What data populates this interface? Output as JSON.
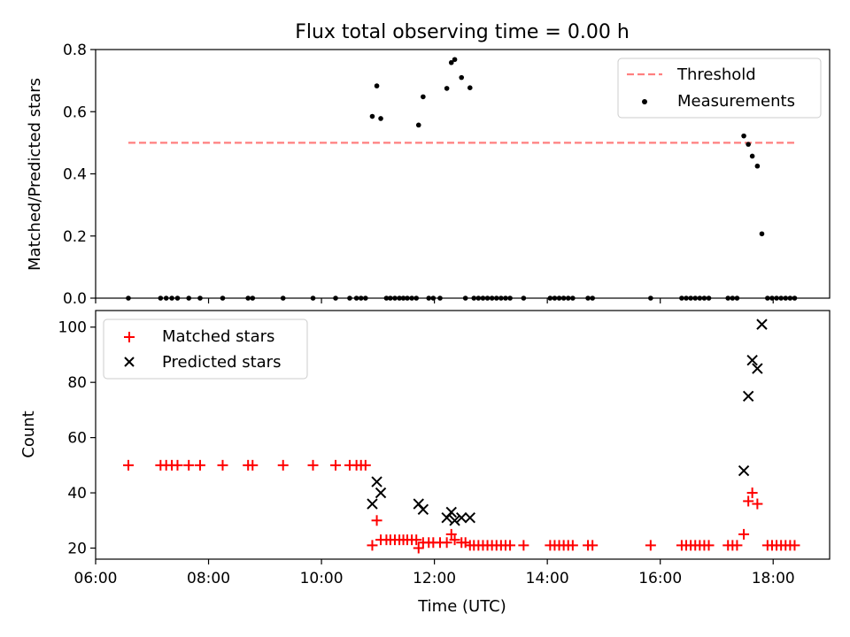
{
  "title": "Flux total observing time = 0.00 h",
  "chart_data": [
    {
      "type": "scatter",
      "xlabel": "",
      "ylabel": "Matched/Predicted stars",
      "xlim": [
        6.0,
        19.0
      ],
      "ylim": [
        0.0,
        0.8
      ],
      "y_ticks": [
        0.0,
        0.2,
        0.4,
        0.6,
        0.8
      ],
      "y_tick_labels": [
        "0.0",
        "0.2",
        "0.4",
        "0.6",
        "0.8"
      ],
      "x_ticks": [
        6,
        8,
        10,
        12,
        14,
        16,
        18
      ],
      "legend": {
        "placement": "upper-right",
        "entries": [
          "Threshold",
          "Measurements"
        ]
      },
      "threshold": {
        "name": "Threshold",
        "value": 0.5,
        "x_start": 6.58,
        "x_end": 18.42,
        "color": "#ff7f7f",
        "style": "dashed"
      },
      "series": [
        {
          "name": "Measurements",
          "marker": "dot",
          "color": "#000000",
          "points": [
            [
              6.58,
              0.0
            ],
            [
              7.15,
              0.0
            ],
            [
              7.25,
              0.0
            ],
            [
              7.35,
              0.0
            ],
            [
              7.45,
              0.0
            ],
            [
              7.65,
              0.0
            ],
            [
              7.85,
              0.0
            ],
            [
              8.25,
              0.0
            ],
            [
              8.7,
              0.0
            ],
            [
              8.78,
              0.0
            ],
            [
              9.32,
              0.0
            ],
            [
              9.85,
              0.0
            ],
            [
              10.25,
              0.0
            ],
            [
              10.5,
              0.0
            ],
            [
              10.62,
              0.0
            ],
            [
              10.7,
              0.0
            ],
            [
              10.78,
              0.0
            ],
            [
              10.9,
              0.585
            ],
            [
              10.98,
              0.683
            ],
            [
              11.05,
              0.578
            ],
            [
              11.15,
              0.0
            ],
            [
              11.22,
              0.0
            ],
            [
              11.3,
              0.0
            ],
            [
              11.38,
              0.0
            ],
            [
              11.45,
              0.0
            ],
            [
              11.52,
              0.0
            ],
            [
              11.6,
              0.0
            ],
            [
              11.68,
              0.0
            ],
            [
              11.72,
              0.557
            ],
            [
              11.8,
              0.648
            ],
            [
              11.9,
              0.0
            ],
            [
              11.98,
              0.0
            ],
            [
              12.1,
              0.0
            ],
            [
              12.22,
              0.675
            ],
            [
              12.3,
              0.758
            ],
            [
              12.36,
              0.768
            ],
            [
              12.48,
              0.71
            ],
            [
              12.55,
              0.0
            ],
            [
              12.63,
              0.677
            ],
            [
              12.7,
              0.0
            ],
            [
              12.78,
              0.0
            ],
            [
              12.86,
              0.0
            ],
            [
              12.94,
              0.0
            ],
            [
              13.02,
              0.0
            ],
            [
              13.1,
              0.0
            ],
            [
              13.18,
              0.0
            ],
            [
              13.26,
              0.0
            ],
            [
              13.34,
              0.0
            ],
            [
              13.58,
              0.0
            ],
            [
              14.05,
              0.0
            ],
            [
              14.13,
              0.0
            ],
            [
              14.21,
              0.0
            ],
            [
              14.29,
              0.0
            ],
            [
              14.37,
              0.0
            ],
            [
              14.45,
              0.0
            ],
            [
              14.72,
              0.0
            ],
            [
              14.8,
              0.0
            ],
            [
              15.83,
              0.0
            ],
            [
              16.38,
              0.0
            ],
            [
              16.46,
              0.0
            ],
            [
              16.54,
              0.0
            ],
            [
              16.62,
              0.0
            ],
            [
              16.7,
              0.0
            ],
            [
              16.78,
              0.0
            ],
            [
              16.86,
              0.0
            ],
            [
              17.2,
              0.0
            ],
            [
              17.28,
              0.0
            ],
            [
              17.36,
              0.0
            ],
            [
              17.48,
              0.522
            ],
            [
              17.56,
              0.495
            ],
            [
              17.63,
              0.457
            ],
            [
              17.72,
              0.425
            ],
            [
              17.8,
              0.207
            ],
            [
              17.9,
              0.0
            ],
            [
              17.98,
              0.0
            ],
            [
              18.06,
              0.0
            ],
            [
              18.14,
              0.0
            ],
            [
              18.22,
              0.0
            ],
            [
              18.3,
              0.0
            ],
            [
              18.38,
              0.0
            ]
          ]
        }
      ]
    },
    {
      "type": "scatter",
      "xlabel": "Time (UTC)",
      "ylabel": "Count",
      "xlim": [
        6.0,
        19.0
      ],
      "ylim": [
        16.0,
        106.0
      ],
      "y_ticks": [
        20,
        40,
        60,
        80,
        100
      ],
      "y_tick_labels": [
        "20",
        "40",
        "60",
        "80",
        "100"
      ],
      "x_ticks": [
        6,
        8,
        10,
        12,
        14,
        16,
        18
      ],
      "x_tick_labels": [
        "06:00",
        "08:00",
        "10:00",
        "12:00",
        "14:00",
        "16:00",
        "18:00"
      ],
      "legend": {
        "placement": "upper-left",
        "entries": [
          "Matched stars",
          "Predicted stars"
        ]
      },
      "series": [
        {
          "name": "Matched stars",
          "marker": "plus",
          "color": "#ff0000",
          "points": [
            [
              6.58,
              50
            ],
            [
              7.15,
              50
            ],
            [
              7.25,
              50
            ],
            [
              7.35,
              50
            ],
            [
              7.45,
              50
            ],
            [
              7.65,
              50
            ],
            [
              7.85,
              50
            ],
            [
              8.25,
              50
            ],
            [
              8.7,
              50
            ],
            [
              8.78,
              50
            ],
            [
              9.32,
              50
            ],
            [
              9.85,
              50
            ],
            [
              10.25,
              50
            ],
            [
              10.5,
              50
            ],
            [
              10.62,
              50
            ],
            [
              10.7,
              50
            ],
            [
              10.78,
              50
            ],
            [
              10.9,
              21
            ],
            [
              10.98,
              30
            ],
            [
              11.05,
              23
            ],
            [
              11.15,
              23
            ],
            [
              11.22,
              23
            ],
            [
              11.3,
              23
            ],
            [
              11.38,
              23
            ],
            [
              11.45,
              23
            ],
            [
              11.52,
              23
            ],
            [
              11.6,
              23
            ],
            [
              11.68,
              23
            ],
            [
              11.72,
              20
            ],
            [
              11.8,
              22
            ],
            [
              11.9,
              22
            ],
            [
              11.98,
              22
            ],
            [
              12.1,
              22
            ],
            [
              12.22,
              22
            ],
            [
              12.3,
              25
            ],
            [
              12.36,
              23
            ],
            [
              12.48,
              22
            ],
            [
              12.55,
              22
            ],
            [
              12.63,
              21
            ],
            [
              12.7,
              21
            ],
            [
              12.78,
              21
            ],
            [
              12.86,
              21
            ],
            [
              12.94,
              21
            ],
            [
              13.02,
              21
            ],
            [
              13.1,
              21
            ],
            [
              13.18,
              21
            ],
            [
              13.26,
              21
            ],
            [
              13.34,
              21
            ],
            [
              13.58,
              21
            ],
            [
              14.05,
              21
            ],
            [
              14.13,
              21
            ],
            [
              14.21,
              21
            ],
            [
              14.29,
              21
            ],
            [
              14.37,
              21
            ],
            [
              14.45,
              21
            ],
            [
              14.72,
              21
            ],
            [
              14.8,
              21
            ],
            [
              15.83,
              21
            ],
            [
              16.38,
              21
            ],
            [
              16.46,
              21
            ],
            [
              16.54,
              21
            ],
            [
              16.62,
              21
            ],
            [
              16.7,
              21
            ],
            [
              16.78,
              21
            ],
            [
              16.86,
              21
            ],
            [
              17.2,
              21
            ],
            [
              17.28,
              21
            ],
            [
              17.36,
              21
            ],
            [
              17.48,
              25
            ],
            [
              17.56,
              37
            ],
            [
              17.63,
              40
            ],
            [
              17.72,
              36
            ],
            [
              17.9,
              21
            ],
            [
              17.98,
              21
            ],
            [
              18.06,
              21
            ],
            [
              18.14,
              21
            ],
            [
              18.22,
              21
            ],
            [
              18.3,
              21
            ],
            [
              18.38,
              21
            ]
          ]
        },
        {
          "name": "Predicted stars",
          "marker": "x",
          "color": "#000000",
          "points": [
            [
              10.9,
              36
            ],
            [
              10.98,
              44
            ],
            [
              11.05,
              40
            ],
            [
              11.72,
              36
            ],
            [
              11.8,
              34
            ],
            [
              12.22,
              31
            ],
            [
              12.3,
              33
            ],
            [
              12.36,
              30
            ],
            [
              12.48,
              31
            ],
            [
              12.63,
              31
            ],
            [
              17.48,
              48
            ],
            [
              17.56,
              75
            ],
            [
              17.63,
              88
            ],
            [
              17.72,
              85
            ],
            [
              17.8,
              101
            ]
          ]
        }
      ]
    }
  ]
}
